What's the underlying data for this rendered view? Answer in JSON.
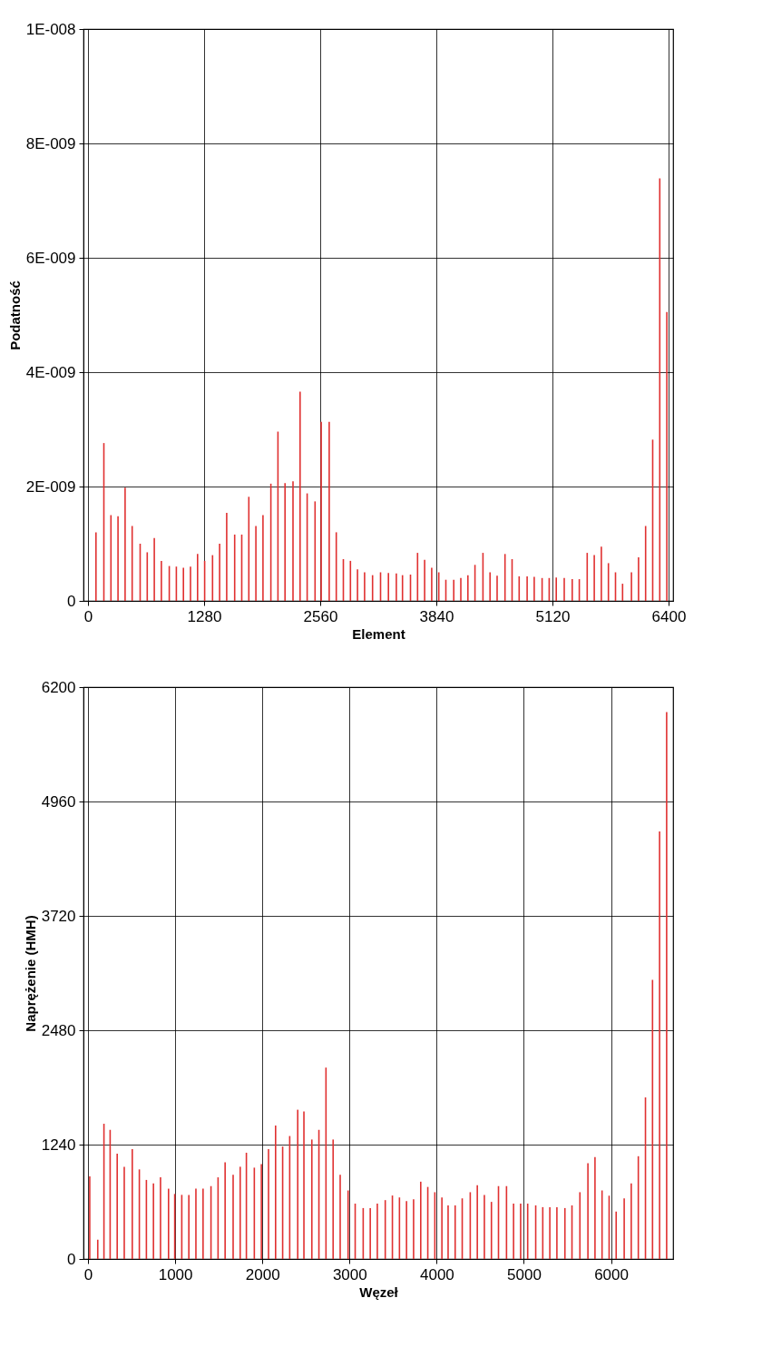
{
  "chart_data": [
    {
      "type": "bar",
      "xlabel": "Element",
      "ylabel": "Podatność",
      "grid": true,
      "xlim": [
        0,
        6400
      ],
      "xticks": [
        0,
        1280,
        2560,
        3840,
        5120,
        6400
      ],
      "ylim": [
        0,
        1e-08
      ],
      "yticks": [
        {
          "value": 0,
          "label": "0"
        },
        {
          "value": 2e-09,
          "label": "2E-009"
        },
        {
          "value": 4e-09,
          "label": "4E-009"
        },
        {
          "value": 6e-09,
          "label": "6E-009"
        },
        {
          "value": 8e-09,
          "label": "8E-009"
        },
        {
          "value": 1e-08,
          "label": "1E-008"
        }
      ],
      "series": [
        {
          "color": "#e03030",
          "x": [
            88,
            175,
            253,
            331,
            409,
            487,
            575,
            653,
            731,
            809,
            896,
            974,
            1052,
            1130,
            1208,
            1286,
            1373,
            1451,
            1529,
            1617,
            1695,
            1773,
            1851,
            1929,
            2016,
            2094,
            2172,
            2260,
            2338,
            2416,
            2503,
            2571,
            2659,
            2737,
            2815,
            2893,
            2971,
            3049,
            3137,
            3225,
            3312,
            3399,
            3467,
            3555,
            3633,
            3711,
            3789,
            3867,
            3945,
            4032,
            4110,
            4188,
            4266,
            4354,
            4432,
            4510,
            4597,
            4675,
            4753,
            4841,
            4919,
            5006,
            5084,
            5162,
            5250,
            5338,
            5416,
            5503,
            5581,
            5659,
            5737,
            5815,
            5893,
            5991,
            6069,
            6147,
            6225,
            6303,
            6381
          ],
          "values": [
            1.2e-09,
            2.76e-09,
            1.5e-09,
            1.48e-09,
            1.98e-09,
            1.31e-09,
            1e-09,
            8.5e-10,
            1.1e-09,
            7e-10,
            6.1e-10,
            6e-10,
            5.8e-10,
            6e-10,
            8.2e-10,
            7e-10,
            8e-10,
            1e-09,
            1.54e-09,
            1.16e-09,
            1.16e-09,
            1.82e-09,
            1.31e-09,
            1.5e-09,
            2.05e-09,
            2.96e-09,
            2.06e-09,
            2.09e-09,
            3.66e-09,
            1.88e-09,
            1.74e-09,
            3.13e-09,
            3.13e-09,
            1.2e-09,
            7.3e-10,
            7e-10,
            5.5e-10,
            5e-10,
            4.5e-10,
            5e-10,
            4.9e-10,
            4.8e-10,
            4.5e-10,
            4.6e-10,
            8.4e-10,
            7.2e-10,
            5.8e-10,
            5e-10,
            3.7e-10,
            3.7e-10,
            4e-10,
            4.5e-10,
            6.3e-10,
            8.4e-10,
            5e-10,
            4.4e-10,
            8.2e-10,
            7.3e-10,
            4.3e-10,
            4.3e-10,
            4.2e-10,
            4e-10,
            4e-10,
            4.1e-10,
            4e-10,
            3.8e-10,
            3.8e-10,
            8.4e-10,
            8e-10,
            9.5e-10,
            6.6e-10,
            5e-10,
            3e-10,
            5e-10,
            7.6e-10,
            1.31e-09,
            2.82e-09,
            7.39e-09,
            5.05e-09
          ]
        }
      ]
    },
    {
      "type": "bar",
      "xlabel": "Węzeł",
      "ylabel": "Naprężenie (HMH)",
      "grid": true,
      "xlim": [
        0,
        6660
      ],
      "xticks": [
        0,
        1000,
        2000,
        3000,
        4000,
        5000,
        6000
      ],
      "ylim": [
        0,
        6200
      ],
      "yticks": [
        0,
        1240,
        2480,
        3720,
        4960,
        6200
      ],
      "series": [
        {
          "color": "#e03030",
          "x": [
            20,
            112,
            183,
            254,
            335,
            416,
            508,
            589,
            670,
            751,
            832,
            924,
            995,
            1076,
            1157,
            1238,
            1320,
            1411,
            1492,
            1573,
            1665,
            1746,
            1817,
            1908,
            1989,
            2071,
            2152,
            2233,
            2314,
            2406,
            2477,
            2568,
            2649,
            2730,
            2812,
            2893,
            2984,
            3065,
            3157,
            3238,
            3319,
            3410,
            3492,
            3573,
            3654,
            3735,
            3817,
            3898,
            3979,
            4060,
            4131,
            4212,
            4293,
            4385,
            4466,
            4547,
            4628,
            4709,
            4801,
            4882,
            4963,
            5044,
            5136,
            5217,
            5298,
            5379,
            5471,
            5552,
            5643,
            5735,
            5816,
            5897,
            5978,
            6059,
            6151,
            6232,
            6313,
            6395,
            6476,
            6557,
            6638
          ],
          "values": [
            895,
            209,
            1466,
            1400,
            1142,
            1000,
            1190,
            971,
            857,
            819,
            885,
            762,
            705,
            695,
            695,
            762,
            762,
            790,
            885,
            1047,
            914,
            1000,
            1152,
            990,
            1028,
            1190,
            1447,
            1219,
            1333,
            1618,
            1599,
            1295,
            1400,
            2075,
            1295,
            914,
            743,
            600,
            552,
            552,
            600,
            638,
            688,
            667,
            628,
            647,
            838,
            781,
            724,
            667,
            581,
            581,
            657,
            724,
            800,
            695,
            619,
            790,
            790,
            600,
            600,
            600,
            581,
            562,
            562,
            562,
            552,
            581,
            724,
            1038,
            1104,
            743,
            686,
            514,
            657,
            819,
            1114,
            1752,
            3027,
            4636,
            5930
          ]
        }
      ]
    }
  ]
}
